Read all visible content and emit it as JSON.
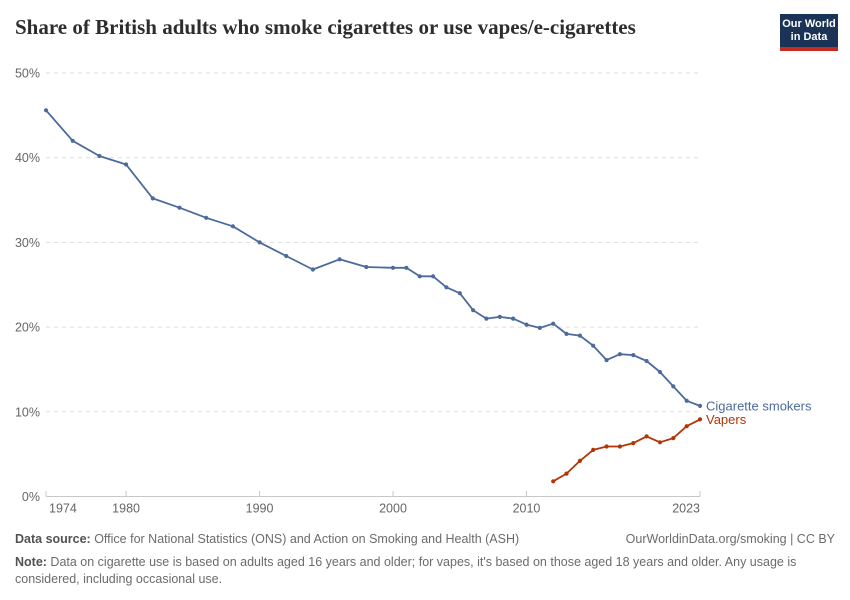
{
  "header": {
    "title": "Share of British adults who smoke cigarettes or use vapes/e-cigarettes",
    "logo_line1": "Our World",
    "logo_line2": "in Data"
  },
  "footer": {
    "datasource_label": "Data source:",
    "datasource_text": " Office for National Statistics (ONS) and Action on Smoking and Health (ASH)",
    "link_text": "OurWorldinData.org/smoking | CC BY",
    "note_label": "Note:",
    "note_text": " Data on cigarette use is based on adults aged 16 years and older; for vapes, it's based on those aged 18 years and older. Any usage is considered, including occasional use."
  },
  "colors": {
    "cigarette_blue": "#4c6a9c",
    "vapers_red": "#b13507",
    "gridline": "#dddddd",
    "axis": "#c8c8c8",
    "tick_label": "#666666",
    "logo_navy": "#1c3358",
    "logo_red": "#c62a22"
  },
  "chart_data": {
    "type": "line",
    "title": "Share of British adults who smoke cigarettes or use vapes/e-cigarettes",
    "xlabel": "",
    "ylabel": "",
    "xlim": [
      1974,
      2023
    ],
    "ylim": [
      0,
      50
    ],
    "yticks": [
      0,
      10,
      20,
      30,
      40,
      50
    ],
    "ytick_format": "{v}%",
    "xticks": [
      1974,
      1980,
      1990,
      2000,
      2010,
      2023
    ],
    "grid": "horizontal-dashed",
    "legend_position": "end-of-line-labels",
    "series": [
      {
        "name": "Cigarette smokers",
        "color": "#4c6a9c",
        "points": [
          [
            1974,
            45.6
          ],
          [
            1976,
            42.0
          ],
          [
            1978,
            40.2
          ],
          [
            1980,
            39.2
          ],
          [
            1982,
            35.2
          ],
          [
            1984,
            34.1
          ],
          [
            1986,
            32.9
          ],
          [
            1988,
            31.9
          ],
          [
            1990,
            30.0
          ],
          [
            1992,
            28.4
          ],
          [
            1994,
            26.8
          ],
          [
            1996,
            28.0
          ],
          [
            1998,
            27.1
          ],
          [
            2000,
            27.0
          ],
          [
            2001,
            27.0
          ],
          [
            2002,
            26.0
          ],
          [
            2003,
            26.0
          ],
          [
            2004,
            24.7
          ],
          [
            2005,
            24.0
          ],
          [
            2006,
            22.0
          ],
          [
            2007,
            21.0
          ],
          [
            2008,
            21.2
          ],
          [
            2009,
            21.0
          ],
          [
            2010,
            20.3
          ],
          [
            2011,
            19.9
          ],
          [
            2012,
            20.4
          ],
          [
            2013,
            19.2
          ],
          [
            2014,
            19.0
          ],
          [
            2015,
            17.8
          ],
          [
            2016,
            16.1
          ],
          [
            2017,
            16.8
          ],
          [
            2018,
            16.7
          ],
          [
            2019,
            16.0
          ],
          [
            2020,
            14.7
          ],
          [
            2021,
            13.0
          ],
          [
            2022,
            11.3
          ],
          [
            2023,
            10.7
          ]
        ]
      },
      {
        "name": "Vapers",
        "color": "#b13507",
        "points": [
          [
            2012,
            1.8
          ],
          [
            2013,
            2.7
          ],
          [
            2014,
            4.2
          ],
          [
            2015,
            5.5
          ],
          [
            2016,
            5.9
          ],
          [
            2017,
            5.9
          ],
          [
            2018,
            6.3
          ],
          [
            2019,
            7.1
          ],
          [
            2020,
            6.4
          ],
          [
            2021,
            6.9
          ],
          [
            2022,
            8.3
          ],
          [
            2023,
            9.1
          ]
        ]
      }
    ]
  }
}
